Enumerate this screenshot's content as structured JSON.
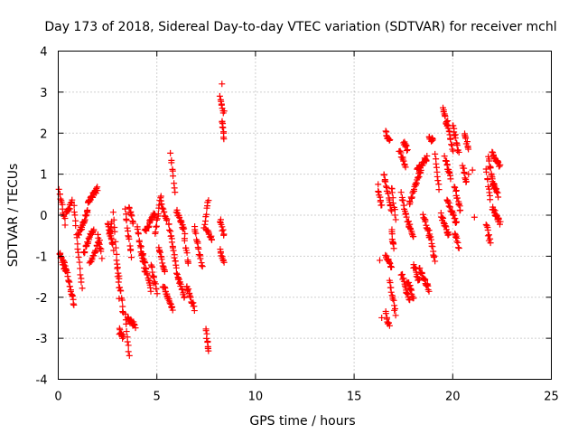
{
  "chart_data": {
    "type": "scatter",
    "title": "Day 173 of 2018, Sidereal Day-to-day VTEC variation (SDTVAR) for receiver mchl",
    "xlabel": "GPS time / hours",
    "ylabel": "SDTVAR / TECUs",
    "xlim": [
      0,
      25
    ],
    "ylim": [
      -4,
      4
    ],
    "xticks": [
      0,
      5,
      10,
      15,
      20,
      25
    ],
    "yticks": [
      -4,
      -3,
      -2,
      -1,
      0,
      1,
      2,
      3,
      4
    ],
    "grid": true,
    "marker": "+",
    "color": "#ff0000",
    "series": [
      {
        "name": "SDTVAR",
        "segments": [
          {
            "x0": 0.05,
            "x1": 0.35,
            "y0": 0.6,
            "y1": -0.2
          },
          {
            "x0": 0.05,
            "x1": 0.4,
            "y0": -0.9,
            "y1": -1.4
          },
          {
            "x0": 0.3,
            "x1": 0.8,
            "y0": -1.1,
            "y1": -2.2
          },
          {
            "x0": 0.4,
            "x1": 0.7,
            "y0": 0.0,
            "y1": 0.35
          },
          {
            "x0": 0.8,
            "x1": 1.2,
            "y0": 0.2,
            "y1": -1.8
          },
          {
            "x0": 1.0,
            "x1": 1.5,
            "y0": -0.5,
            "y1": 0.1
          },
          {
            "x0": 1.3,
            "x1": 1.8,
            "y0": -0.9,
            "y1": -0.3
          },
          {
            "x0": 1.5,
            "x1": 2.0,
            "y0": 0.3,
            "y1": 0.65
          },
          {
            "x0": 1.6,
            "x1": 2.1,
            "y0": -1.2,
            "y1": -0.6
          },
          {
            "x0": 2.0,
            "x1": 2.2,
            "y0": -0.5,
            "y1": -1.0
          },
          {
            "x0": 2.5,
            "x1": 2.8,
            "y0": -0.2,
            "y1": -0.8
          },
          {
            "x0": 2.6,
            "x1": 2.7,
            "y0": -0.5,
            "y1": -0.2
          },
          {
            "x0": 2.8,
            "x1": 3.1,
            "y0": 0.1,
            "y1": -2.0
          },
          {
            "x0": 3.0,
            "x1": 3.3,
            "y0": -1.2,
            "y1": -2.4
          },
          {
            "x0": 3.1,
            "x1": 3.3,
            "y0": -2.8,
            "y1": -3.0
          },
          {
            "x0": 3.4,
            "x1": 3.6,
            "y0": -2.4,
            "y1": -3.45
          },
          {
            "x0": 3.4,
            "x1": 3.7,
            "y0": 0.1,
            "y1": -1.0
          },
          {
            "x0": 3.5,
            "x1": 3.9,
            "y0": -2.5,
            "y1": -2.7
          },
          {
            "x0": 3.6,
            "x1": 3.8,
            "y0": 0.2,
            "y1": -0.2
          },
          {
            "x0": 4.0,
            "x1": 4.4,
            "y0": -0.3,
            "y1": -1.4
          },
          {
            "x0": 4.2,
            "x1": 4.7,
            "y0": -0.8,
            "y1": -1.8
          },
          {
            "x0": 4.4,
            "x1": 4.9,
            "y0": -0.4,
            "y1": 0.05
          },
          {
            "x0": 4.7,
            "x1": 5.0,
            "y0": -1.2,
            "y1": -1.9
          },
          {
            "x0": 4.9,
            "x1": 5.2,
            "y0": -0.5,
            "y1": 0.5
          },
          {
            "x0": 5.1,
            "x1": 5.4,
            "y0": -0.8,
            "y1": -1.4
          },
          {
            "x0": 5.2,
            "x1": 5.5,
            "y0": 0.3,
            "y1": -0.1
          },
          {
            "x0": 5.3,
            "x1": 5.8,
            "y0": -1.7,
            "y1": -2.3
          },
          {
            "x0": 5.7,
            "x1": 5.9,
            "y0": 1.5,
            "y1": 0.6
          },
          {
            "x0": 5.6,
            "x1": 6.0,
            "y0": -0.2,
            "y1": -1.3
          },
          {
            "x0": 6.0,
            "x1": 6.4,
            "y0": 0.1,
            "y1": -0.4
          },
          {
            "x0": 6.0,
            "x1": 6.4,
            "y0": -1.4,
            "y1": -2.0
          },
          {
            "x0": 6.4,
            "x1": 6.6,
            "y0": -0.6,
            "y1": -1.2
          },
          {
            "x0": 6.5,
            "x1": 6.9,
            "y0": -1.7,
            "y1": -2.3
          },
          {
            "x0": 6.9,
            "x1": 7.3,
            "y0": -0.3,
            "y1": -1.3
          },
          {
            "x0": 7.4,
            "x1": 7.6,
            "y0": -0.3,
            "y1": 0.4
          },
          {
            "x0": 7.5,
            "x1": 7.8,
            "y0": -0.3,
            "y1": -0.6
          },
          {
            "x0": 7.5,
            "x1": 7.6,
            "y0": -2.8,
            "y1": -3.3
          },
          {
            "x0": 8.2,
            "x1": 8.4,
            "y0": 2.9,
            "y1": 2.5
          },
          {
            "x0": 8.3,
            "x1": 8.4,
            "y0": 2.3,
            "y1": 1.9
          },
          {
            "x0": 8.2,
            "x1": 8.4,
            "y0": -0.1,
            "y1": -0.5
          },
          {
            "x0": 8.2,
            "x1": 8.4,
            "y0": -0.8,
            "y1": -1.2
          },
          {
            "x0": 16.2,
            "x1": 16.4,
            "y0": 0.7,
            "y1": 0.2
          },
          {
            "x0": 16.5,
            "x1": 16.9,
            "y0": 1.0,
            "y1": 0.1
          },
          {
            "x0": 16.6,
            "x1": 16.8,
            "y0": 2.05,
            "y1": 1.8
          },
          {
            "x0": 16.6,
            "x1": 16.9,
            "y0": -1.0,
            "y1": -1.3
          },
          {
            "x0": 16.6,
            "x1": 16.8,
            "y0": -2.4,
            "y1": -2.7
          },
          {
            "x0": 16.8,
            "x1": 17.1,
            "y0": -1.6,
            "y1": -2.4
          },
          {
            "x0": 16.9,
            "x1": 17.1,
            "y0": 0.7,
            "y1": -0.1
          },
          {
            "x0": 16.9,
            "x1": 17.0,
            "y0": -0.4,
            "y1": -0.8
          },
          {
            "x0": 17.3,
            "x1": 17.6,
            "y0": 1.6,
            "y1": 1.2
          },
          {
            "x0": 17.4,
            "x1": 17.8,
            "y0": 0.5,
            "y1": -0.3
          },
          {
            "x0": 17.4,
            "x1": 17.8,
            "y0": -1.4,
            "y1": -2.1
          },
          {
            "x0": 17.5,
            "x1": 17.7,
            "y0": 1.8,
            "y1": 1.6
          },
          {
            "x0": 17.7,
            "x1": 18.0,
            "y0": -1.6,
            "y1": -2.0
          },
          {
            "x0": 17.8,
            "x1": 18.4,
            "y0": 0.3,
            "y1": 1.1
          },
          {
            "x0": 17.8,
            "x1": 18.0,
            "y0": -0.2,
            "y1": -0.5
          },
          {
            "x0": 18.0,
            "x1": 18.3,
            "y0": -1.2,
            "y1": -1.6
          },
          {
            "x0": 18.2,
            "x1": 18.7,
            "y0": 1.1,
            "y1": 1.4
          },
          {
            "x0": 18.3,
            "x1": 18.8,
            "y0": -1.3,
            "y1": -1.8
          },
          {
            "x0": 18.5,
            "x1": 18.8,
            "y0": 0.0,
            "y1": -0.5
          },
          {
            "x0": 18.8,
            "x1": 19.0,
            "y0": 1.9,
            "y1": 1.8
          },
          {
            "x0": 18.8,
            "x1": 19.1,
            "y0": -0.4,
            "y1": -1.1
          },
          {
            "x0": 19.1,
            "x1": 19.3,
            "y0": 1.5,
            "y1": 0.6
          },
          {
            "x0": 19.4,
            "x1": 19.8,
            "y0": 0.0,
            "y1": -0.5
          },
          {
            "x0": 19.5,
            "x1": 19.7,
            "y0": 2.6,
            "y1": 2.2
          },
          {
            "x0": 19.6,
            "x1": 19.9,
            "y0": 1.4,
            "y1": 0.9
          },
          {
            "x0": 19.7,
            "x1": 20.0,
            "y0": 2.3,
            "y1": 1.6
          },
          {
            "x0": 19.7,
            "x1": 20.2,
            "y0": 0.4,
            "y1": -0.2
          },
          {
            "x0": 20.0,
            "x1": 20.3,
            "y0": 2.2,
            "y1": 1.5
          },
          {
            "x0": 20.1,
            "x1": 20.3,
            "y0": -0.4,
            "y1": -0.8
          },
          {
            "x0": 20.1,
            "x1": 20.4,
            "y0": 0.7,
            "y1": 0.1
          },
          {
            "x0": 20.5,
            "x1": 20.7,
            "y0": 1.2,
            "y1": 0.8
          },
          {
            "x0": 20.6,
            "x1": 20.8,
            "y0": 2.0,
            "y1": 1.6
          },
          {
            "x0": 21.7,
            "x1": 21.9,
            "y0": 1.1,
            "y1": 0.4
          },
          {
            "x0": 21.8,
            "x1": 22.1,
            "y0": 1.4,
            "y1": 0.7
          },
          {
            "x0": 21.7,
            "x1": 21.9,
            "y0": -0.2,
            "y1": -0.7
          },
          {
            "x0": 22.0,
            "x1": 22.4,
            "y0": 1.5,
            "y1": 1.2
          },
          {
            "x0": 22.0,
            "x1": 22.4,
            "y0": 0.2,
            "y1": -0.2
          },
          {
            "x0": 22.0,
            "x1": 22.3,
            "y0": 0.8,
            "y1": 0.5
          }
        ],
        "points": [
          {
            "x": 8.3,
            "y": 3.2
          },
          {
            "x": 20.8,
            "y": 1.0
          },
          {
            "x": 21.0,
            "y": 1.1
          },
          {
            "x": 21.1,
            "y": -0.05
          },
          {
            "x": 16.3,
            "y": -1.1
          },
          {
            "x": 16.4,
            "y": -2.5
          },
          {
            "x": 3.1,
            "y": -2.9
          },
          {
            "x": 7.6,
            "y": -3.25
          }
        ]
      }
    ]
  }
}
